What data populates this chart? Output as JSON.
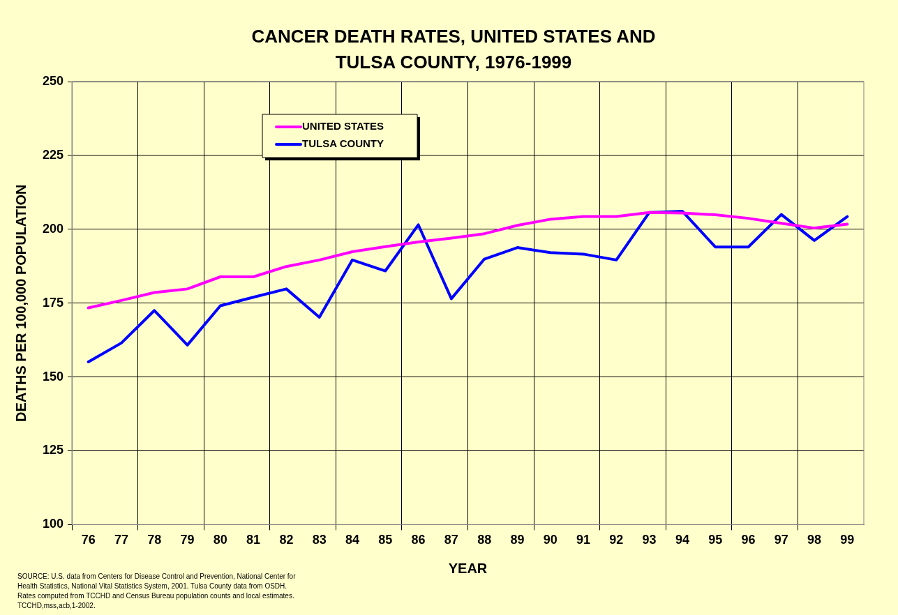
{
  "chart_data": {
    "type": "line",
    "title": "CANCER DEATH RATES, UNITED STATES AND TULSA COUNTY, 1976-1999",
    "xlabel": "YEAR",
    "ylabel": "DEATHS PER 100,000 POPULATION",
    "categories": [
      "76",
      "77",
      "78",
      "79",
      "80",
      "81",
      "82",
      "83",
      "84",
      "85",
      "86",
      "87",
      "88",
      "89",
      "90",
      "91",
      "92",
      "93",
      "94",
      "95",
      "96",
      "97",
      "98",
      "99"
    ],
    "series": [
      {
        "name": "UNITED STATES",
        "color": "#ff00ff",
        "values": [
          173.4,
          175.9,
          178.6,
          179.8,
          183.9,
          183.9,
          187.4,
          189.6,
          192.4,
          194.1,
          195.7,
          197.0,
          198.5,
          201.3,
          203.4,
          204.3,
          204.3,
          205.7,
          205.5,
          204.9,
          203.7,
          202.0,
          200.4,
          201.7
        ]
      },
      {
        "name": "TULSA COUNTY",
        "color": "#0000ff",
        "values": [
          155.1,
          161.5,
          172.5,
          160.8,
          174.1,
          177.0,
          179.8,
          170.2,
          189.6,
          185.9,
          201.5,
          176.5,
          189.9,
          193.8,
          192.1,
          191.6,
          189.6,
          205.7,
          206.1,
          194.0,
          194.0,
          205.0,
          196.2,
          204.3
        ]
      }
    ],
    "ylim": [
      100,
      250
    ],
    "yticks": [
      100,
      125,
      150,
      175,
      200,
      225,
      250
    ],
    "grid": true,
    "legend": "top left",
    "marker": "none",
    "line_style": "solid",
    "annotations": [
      "SOURCE:  U.S. data from Centers for Disease Control and Prevention, National Center for\nHealth Statistics, National Vital Statistics System, 2001.  Tulsa County data from OSDH.\nRates computed from TCCHD and Census Bureau population counts and local estimates.\nTCCHD,mss,acb,1-2002."
    ]
  }
}
